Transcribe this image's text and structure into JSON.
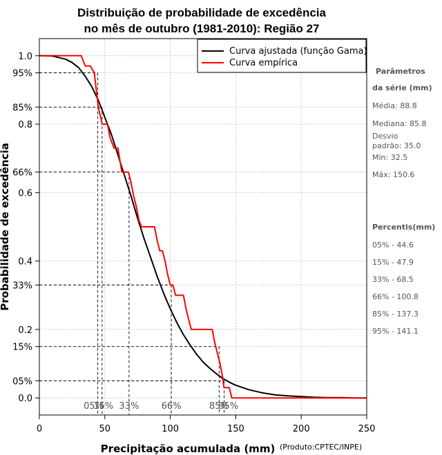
{
  "chart_data": {
    "type": "line",
    "title_line1": "Distribuição de probabilidade de excedência",
    "title_line2": "no mês de outubro (1981-2010): Região 27",
    "xlabel": "Precipitação acumulada (mm)",
    "ylabel": "Probabilidade de excedência",
    "credit": "(Produto:CPTEC/INPE)",
    "xlim": [
      0,
      250
    ],
    "ylim": [
      -0.05,
      1.05
    ],
    "x_ticks": [
      0,
      50,
      100,
      150,
      200,
      250
    ],
    "x_tick_labels": [
      "0",
      "50",
      "100",
      "150",
      "200",
      "250"
    ],
    "y_ticks": [
      0.0,
      0.05,
      0.15,
      0.2,
      0.33,
      0.4,
      0.6,
      0.66,
      0.8,
      0.85,
      0.95,
      1.0
    ],
    "y_tick_labels": [
      "0.0",
      "05%",
      "15%",
      "0.2",
      "33%",
      "0.4",
      "0.6",
      "66%",
      "0.8",
      "85%",
      "95%",
      "1.0"
    ],
    "legend": {
      "position": "top-right",
      "entries": [
        {
          "label": "Curva ajustada (função Gama)",
          "color": "#000000"
        },
        {
          "label": "Curva empírica",
          "color": "#ff0000"
        }
      ]
    },
    "series": [
      {
        "name": "Curva ajustada (função Gama)",
        "color": "#000000",
        "x": [
          0,
          10,
          20,
          25,
          30,
          35,
          40,
          45,
          50,
          55,
          60,
          65,
          70,
          75,
          80,
          85,
          90,
          95,
          100,
          105,
          110,
          115,
          120,
          125,
          130,
          135,
          140,
          145,
          150,
          160,
          170,
          180,
          190,
          200,
          210,
          220,
          230,
          240,
          250
        ],
        "y": [
          1.0,
          0.999,
          0.99,
          0.98,
          0.965,
          0.94,
          0.91,
          0.87,
          0.82,
          0.77,
          0.71,
          0.65,
          0.59,
          0.525,
          0.465,
          0.41,
          0.355,
          0.305,
          0.26,
          0.22,
          0.185,
          0.155,
          0.128,
          0.105,
          0.087,
          0.071,
          0.057,
          0.046,
          0.037,
          0.024,
          0.015,
          0.009,
          0.006,
          0.004,
          0.002,
          0.001,
          0.001,
          0.0,
          0.0
        ]
      },
      {
        "name": "Curva empírica",
        "color": "#ff0000",
        "x": [
          0,
          32,
          35,
          39,
          42,
          45,
          48,
          50,
          52,
          54,
          57,
          60,
          63,
          66,
          68,
          70,
          72,
          74,
          76,
          78,
          80,
          82,
          84,
          86,
          88,
          90,
          92,
          94,
          96,
          98,
          100,
          102,
          104,
          106,
          108,
          110,
          112,
          114,
          116,
          118,
          120,
          122,
          124,
          126,
          128,
          130,
          132,
          134,
          136,
          138,
          140,
          141,
          143,
          145,
          147,
          149,
          151,
          250
        ],
        "y": [
          1.0,
          1.0,
          0.97,
          0.97,
          0.95,
          0.85,
          0.8,
          0.8,
          0.8,
          0.76,
          0.73,
          0.73,
          0.66,
          0.66,
          0.66,
          0.63,
          0.59,
          0.56,
          0.52,
          0.5,
          0.5,
          0.5,
          0.5,
          0.5,
          0.5,
          0.46,
          0.43,
          0.43,
          0.4,
          0.36,
          0.33,
          0.33,
          0.3,
          0.3,
          0.3,
          0.3,
          0.26,
          0.23,
          0.2,
          0.2,
          0.2,
          0.2,
          0.2,
          0.2,
          0.2,
          0.2,
          0.2,
          0.16,
          0.13,
          0.1,
          0.06,
          0.03,
          0.03,
          0.03,
          0.0,
          0.0,
          0.0,
          0.0
        ]
      }
    ],
    "percentile_markers": [
      {
        "label": "05%",
        "x": 44.6,
        "y": 0.95
      },
      {
        "label": "15%",
        "x": 47.9,
        "y": 0.85
      },
      {
        "label": "33%",
        "x": 68.5,
        "y": 0.66
      },
      {
        "label": "66%",
        "x": 100.8,
        "y": 0.33
      },
      {
        "label": "85%",
        "x": 137.3,
        "y": 0.15
      },
      {
        "label": "95%",
        "x": 141.1,
        "y": 0.05
      }
    ],
    "grid": true
  },
  "sidebar": {
    "params_title_1": "Parâmetros",
    "params_title_2": "da série (mm)",
    "media": "Média: 88.8",
    "mediana": "Mediana: 85.8",
    "desvio_1": "Desvio",
    "desvio_2": "padrão: 35.0",
    "min": "Mín: 32.5",
    "max": "Máx: 150.6",
    "percentis_title": "Percentis(mm)",
    "percentis": [
      "05% - 44.6",
      "15% - 47.9",
      "33% - 68.5",
      "66% - 100.8",
      "85% - 137.3",
      "95% - 141.1"
    ]
  }
}
